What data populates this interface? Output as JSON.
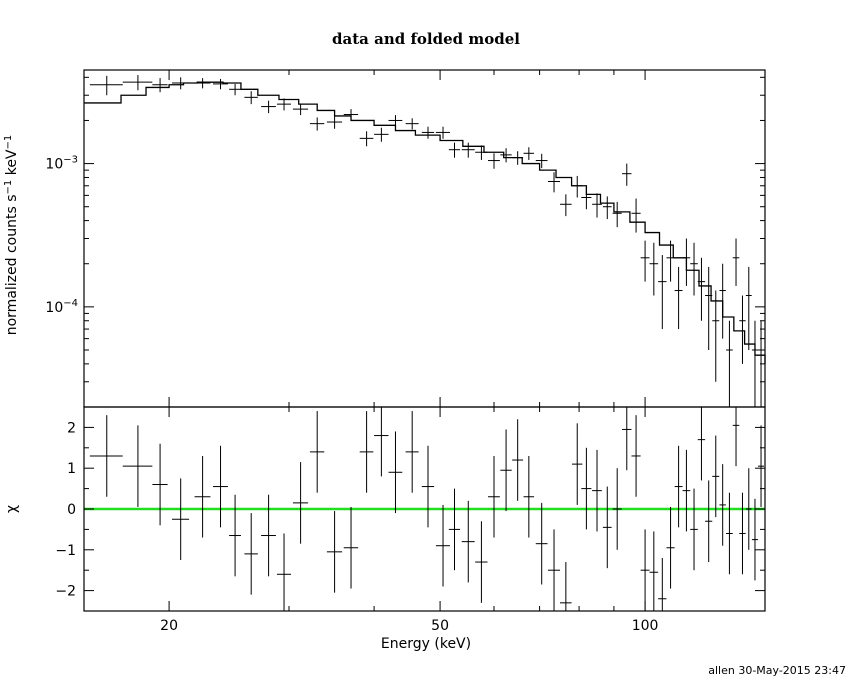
{
  "footer": "allen 30-May-2015 23:47",
  "colors": {
    "data": "#000000",
    "model": "#000000",
    "zero_line": "#22dd22",
    "background": "#ffffff"
  },
  "chart_data": [
    {
      "type": "line",
      "title": "data and folded model",
      "xlabel": "",
      "ylabel": "normalized counts s^-1 keV^-1",
      "xscale": "log",
      "yscale": "log",
      "xlim": [
        15,
        150
      ],
      "ylim": [
        2e-05,
        0.0045
      ],
      "yticks": [
        {
          "value": 0.001,
          "mant": "10",
          "exp": "−3"
        },
        {
          "value": 0.0001,
          "mant": "10",
          "exp": "−4"
        }
      ],
      "series": [
        {
          "kind": "data-with-errors",
          "points": [
            [
              16.2,
              0.00355,
              0.9,
              0.00055
            ],
            [
              18.0,
              0.0037,
              0.9,
              0.00045
            ],
            [
              19.4,
              0.00355,
              0.5,
              0.0004
            ],
            [
              20.8,
              0.00365,
              0.6,
              0.00035
            ],
            [
              22.4,
              0.00365,
              0.6,
              0.0003
            ],
            [
              23.8,
              0.0036,
              0.6,
              0.0003
            ],
            [
              25.0,
              0.0033,
              0.5,
              0.0003
            ],
            [
              26.4,
              0.0029,
              0.6,
              0.0003
            ],
            [
              28.0,
              0.0025,
              0.7,
              0.00025
            ],
            [
              29.5,
              0.0026,
              0.7,
              0.00025
            ],
            [
              31.2,
              0.0024,
              0.8,
              0.00022
            ],
            [
              33.0,
              0.0019,
              0.8,
              0.0002
            ],
            [
              35.0,
              0.00195,
              0.9,
              0.0002
            ],
            [
              37.0,
              0.0022,
              0.9,
              0.0002
            ],
            [
              39.0,
              0.0015,
              0.9,
              0.00018
            ],
            [
              41.0,
              0.0016,
              1.0,
              0.00018
            ],
            [
              43.0,
              0.002,
              1.0,
              0.00018
            ],
            [
              45.5,
              0.0019,
              1.0,
              0.00017
            ],
            [
              48.0,
              0.00165,
              1.0,
              0.00016
            ],
            [
              50.5,
              0.00165,
              1.2,
              0.00016
            ],
            [
              52.5,
              0.00125,
              1.0,
              0.00015
            ],
            [
              55.0,
              0.00125,
              1.2,
              0.00015
            ],
            [
              57.5,
              0.0012,
              1.2,
              0.00014
            ],
            [
              60.0,
              0.00105,
              1.2,
              0.00013
            ],
            [
              62.5,
              0.00115,
              1.2,
              0.00013
            ],
            [
              65.0,
              0.0011,
              1.2,
              0.00012
            ],
            [
              67.5,
              0.00118,
              1.2,
              0.00012
            ],
            [
              70.5,
              0.00105,
              1.4,
              0.00012
            ],
            [
              73.5,
              0.00075,
              1.5,
              0.00012
            ],
            [
              76.5,
              0.00052,
              1.5,
              9e-05
            ],
            [
              79.5,
              0.0007,
              1.4,
              0.00012
            ],
            [
              82.0,
              0.00058,
              1.4,
              0.0001
            ],
            [
              85.0,
              0.00052,
              1.4,
              0.0001
            ],
            [
              88.0,
              0.0005,
              1.3,
              9e-05
            ],
            [
              91.0,
              0.00045,
              1.4,
              9e-05
            ],
            [
              94.0,
              0.00085,
              1.5,
              0.00015
            ],
            [
              97.0,
              0.00045,
              1.5,
              0.00012
            ],
            [
              100.0,
              0.00022,
              1.5,
              7e-05
            ],
            [
              103.0,
              0.0002,
              1.5,
              8e-05
            ],
            [
              106.0,
              0.00015,
              1.5,
              8e-05
            ],
            [
              109.0,
              0.00022,
              1.5,
              7e-05
            ],
            [
              112.0,
              0.00013,
              1.5,
              6e-05
            ],
            [
              115.0,
              0.00022,
              1.5,
              8e-05
            ],
            [
              118.0,
              0.0002,
              1.5,
              8e-05
            ],
            [
              121.0,
              0.00015,
              1.5,
              7e-05
            ],
            [
              124.0,
              0.00012,
              1.5,
              7e-05
            ],
            [
              127.0,
              8e-05,
              1.5,
              5e-05
            ],
            [
              130.0,
              0.00013,
              1.4,
              7e-05
            ],
            [
              133.0,
              5e-05,
              1.5,
              3e-05
            ],
            [
              136.0,
              0.00022,
              1.5,
              8e-05
            ],
            [
              139.0,
              8e-05,
              1.5,
              4e-05
            ],
            [
              142.0,
              0.00012,
              1.4,
              7e-05
            ],
            [
              145.0,
              5e-05,
              1.5,
              3e-05
            ],
            [
              148.0,
              5e-05,
              1.5,
              3e-05
            ]
          ]
        },
        {
          "kind": "folded-model-steps",
          "points": [
            [
              15,
              0.00265
            ],
            [
              17,
              0.003
            ],
            [
              18.5,
              0.0034
            ],
            [
              20,
              0.00355
            ],
            [
              21,
              0.00365
            ],
            [
              22,
              0.0037
            ],
            [
              24,
              0.00365
            ],
            [
              25.5,
              0.0033
            ],
            [
              27,
              0.003
            ],
            [
              29,
              0.0028
            ],
            [
              31,
              0.0026
            ],
            [
              33,
              0.00235
            ],
            [
              35,
              0.00215
            ],
            [
              37,
              0.002
            ],
            [
              40,
              0.00185
            ],
            [
              43,
              0.0017
            ],
            [
              46,
              0.00158
            ],
            [
              50,
              0.00145
            ],
            [
              54,
              0.00132
            ],
            [
              58,
              0.0012
            ],
            [
              62,
              0.0011
            ],
            [
              66,
              0.001
            ],
            [
              70,
              0.0009
            ],
            [
              74,
              0.0008
            ],
            [
              78,
              0.0007
            ],
            [
              82,
              0.00061
            ],
            [
              86,
              0.00053
            ],
            [
              90,
              0.00046
            ],
            [
              95,
              0.00039
            ],
            [
              100,
              0.00033
            ],
            [
              105,
              0.00027
            ],
            [
              110,
              0.00022
            ],
            [
              115,
              0.00018
            ],
            [
              120,
              0.00014
            ],
            [
              125,
              0.00011
            ],
            [
              130,
              8.5e-05
            ],
            [
              135,
              6.8e-05
            ],
            [
              140,
              5.5e-05
            ],
            [
              145,
              4.6e-05
            ],
            [
              150,
              4e-05
            ]
          ]
        }
      ]
    },
    {
      "type": "scatter",
      "title": "",
      "xlabel": "Energy (keV)",
      "ylabel": "χ",
      "xscale": "log",
      "xlim": [
        15,
        150
      ],
      "ylim": [
        -2.5,
        2.5
      ],
      "xticks": [
        {
          "value": 20,
          "label": "20"
        },
        {
          "value": 50,
          "label": "50"
        },
        {
          "value": 100,
          "label": "100"
        }
      ],
      "yticks": [
        {
          "value": 2,
          "label": "2"
        },
        {
          "value": 1,
          "label": "1"
        },
        {
          "value": 0,
          "label": "0"
        },
        {
          "value": -1,
          "label": "−1"
        },
        {
          "value": -2,
          "label": "−2"
        }
      ],
      "reference_line": 0,
      "series": [
        {
          "kind": "residuals",
          "points": [
            [
              16.2,
              1.3,
              0.9
            ],
            [
              18.0,
              1.05,
              0.9
            ],
            [
              19.4,
              0.6,
              0.5
            ],
            [
              20.8,
              -0.25,
              0.6
            ],
            [
              22.4,
              0.3,
              0.6
            ],
            [
              23.8,
              0.55,
              0.6
            ],
            [
              25.0,
              -0.65,
              0.5
            ],
            [
              26.4,
              -1.1,
              0.6
            ],
            [
              28.0,
              -0.65,
              0.7
            ],
            [
              29.5,
              -1.6,
              0.7
            ],
            [
              31.2,
              0.15,
              0.8
            ],
            [
              33.0,
              1.4,
              0.8
            ],
            [
              35.0,
              -1.05,
              0.9
            ],
            [
              37.0,
              -0.95,
              0.9
            ],
            [
              39.0,
              1.4,
              0.9
            ],
            [
              41.0,
              1.8,
              1.0
            ],
            [
              43.0,
              0.9,
              1.0
            ],
            [
              45.5,
              1.4,
              1.0
            ],
            [
              48.0,
              0.55,
              1.0
            ],
            [
              50.5,
              -0.9,
              1.2
            ],
            [
              52.5,
              -0.5,
              1.0
            ],
            [
              55.0,
              -0.8,
              1.2
            ],
            [
              57.5,
              -1.3,
              1.2
            ],
            [
              60.0,
              0.3,
              1.2
            ],
            [
              62.5,
              0.95,
              1.2
            ],
            [
              65.0,
              1.2,
              1.2
            ],
            [
              67.5,
              0.3,
              1.2
            ],
            [
              70.5,
              -0.85,
              1.4
            ],
            [
              73.5,
              -1.5,
              1.5
            ],
            [
              76.5,
              -2.3,
              1.5
            ],
            [
              79.5,
              1.1,
              1.4
            ],
            [
              82.0,
              0.5,
              1.4
            ],
            [
              85.0,
              0.45,
              1.4
            ],
            [
              88.0,
              -0.45,
              1.3
            ],
            [
              91.0,
              0.0,
              1.4
            ],
            [
              94.0,
              1.95,
              1.5
            ],
            [
              97.0,
              1.3,
              1.5
            ],
            [
              100.0,
              -1.5,
              1.5
            ],
            [
              103.0,
              -1.55,
              1.5
            ],
            [
              106.0,
              -2.2,
              1.5
            ],
            [
              109.0,
              -0.95,
              1.5
            ],
            [
              112.0,
              0.55,
              1.5
            ],
            [
              115.0,
              0.45,
              1.5
            ],
            [
              118.0,
              -0.5,
              1.5
            ],
            [
              121.0,
              1.7,
              1.5
            ],
            [
              124.0,
              -0.3,
              1.5
            ],
            [
              127.0,
              0.8,
              1.5
            ],
            [
              130.0,
              0.1,
              1.4
            ],
            [
              133.0,
              -0.6,
              1.5
            ],
            [
              136.0,
              2.05,
              1.5
            ],
            [
              139.0,
              -0.6,
              1.5
            ],
            [
              142.0,
              0.0,
              1.4
            ],
            [
              145.0,
              -0.75,
              1.5
            ],
            [
              148.0,
              1.05,
              1.5
            ]
          ]
        }
      ]
    }
  ]
}
